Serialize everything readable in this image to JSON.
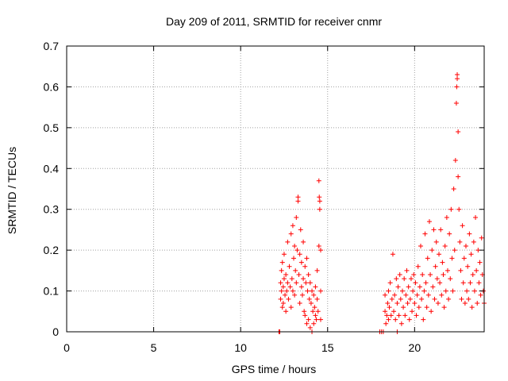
{
  "chart_data": {
    "type": "scatter",
    "title": "Day 209 of 2011, SRMTID for receiver cnmr",
    "xlabel": "GPS time / hours",
    "ylabel": "SRMTID / TECUs",
    "xlim": [
      0,
      24
    ],
    "ylim": [
      0,
      0.7
    ],
    "x_ticks": [
      "0",
      "5",
      "10",
      "15",
      "20"
    ],
    "y_ticks": [
      "0",
      "0.1",
      "0.2",
      "0.3",
      "0.4",
      "0.5",
      "0.6",
      "0.7"
    ],
    "grid": true,
    "marker": "+",
    "colors": {
      "series": "#ff0000",
      "grid": "#a0a0a0",
      "axis": "#000000"
    },
    "series": [
      {
        "points": [
          [
            12.2,
            0.0
          ],
          [
            12.25,
            0.0
          ],
          [
            12.3,
            0.12
          ],
          [
            12.3,
            0.08
          ],
          [
            12.35,
            0.15
          ],
          [
            12.35,
            0.1
          ],
          [
            12.4,
            0.06
          ],
          [
            12.4,
            0.17
          ],
          [
            12.45,
            0.11
          ],
          [
            12.45,
            0.07
          ],
          [
            12.5,
            0.13
          ],
          [
            12.5,
            0.19
          ],
          [
            12.55,
            0.09
          ],
          [
            12.6,
            0.05
          ],
          [
            12.6,
            0.14
          ],
          [
            12.65,
            0.1
          ],
          [
            12.7,
            0.22
          ],
          [
            12.7,
            0.12
          ],
          [
            12.75,
            0.08
          ],
          [
            12.8,
            0.16
          ],
          [
            12.85,
            0.11
          ],
          [
            12.9,
            0.24
          ],
          [
            12.9,
            0.06
          ],
          [
            12.95,
            0.13
          ],
          [
            13.0,
            0.26
          ],
          [
            13.0,
            0.1
          ],
          [
            13.05,
            0.18
          ],
          [
            13.1,
            0.21
          ],
          [
            13.1,
            0.09
          ],
          [
            13.15,
            0.15
          ],
          [
            13.2,
            0.28
          ],
          [
            13.2,
            0.12
          ],
          [
            13.25,
            0.2
          ],
          [
            13.3,
            0.33
          ],
          [
            13.3,
            0.32
          ],
          [
            13.35,
            0.14
          ],
          [
            13.4,
            0.19
          ],
          [
            13.4,
            0.07
          ],
          [
            13.45,
            0.25
          ],
          [
            13.5,
            0.11
          ],
          [
            13.5,
            0.17
          ],
          [
            13.55,
            0.09
          ],
          [
            13.6,
            0.22
          ],
          [
            13.6,
            0.13
          ],
          [
            13.65,
            0.05
          ],
          [
            13.7,
            0.16
          ],
          [
            13.7,
            0.04
          ],
          [
            13.75,
            0.12
          ],
          [
            13.8,
            0.18
          ],
          [
            13.8,
            0.02
          ],
          [
            13.85,
            0.1
          ],
          [
            13.9,
            0.14
          ],
          [
            13.9,
            0.03
          ],
          [
            13.95,
            0.08
          ],
          [
            14.0,
            0.12
          ],
          [
            14.0,
            0.01
          ],
          [
            14.05,
            0.07
          ],
          [
            14.1,
            0.1
          ],
          [
            14.1,
            0.0
          ],
          [
            14.15,
            0.05
          ],
          [
            14.2,
            0.09
          ],
          [
            14.2,
            0.02
          ],
          [
            14.25,
            0.06
          ],
          [
            14.3,
            0.04
          ],
          [
            14.3,
            0.11
          ],
          [
            14.35,
            0.03
          ],
          [
            14.4,
            0.08
          ],
          [
            14.4,
            0.15
          ],
          [
            14.45,
            0.05
          ],
          [
            14.5,
            0.21
          ],
          [
            14.5,
            0.37
          ],
          [
            14.52,
            0.33
          ],
          [
            14.55,
            0.3
          ],
          [
            14.55,
            0.32
          ],
          [
            14.6,
            0.2
          ],
          [
            14.6,
            0.03
          ],
          [
            14.6,
            0.1
          ],
          [
            18.0,
            0.0
          ],
          [
            18.1,
            0.0
          ],
          [
            18.2,
            0.0
          ],
          [
            18.3,
            0.05
          ],
          [
            18.3,
            0.09
          ],
          [
            18.35,
            0.02
          ],
          [
            18.4,
            0.04
          ],
          [
            18.45,
            0.07
          ],
          [
            18.5,
            0.03
          ],
          [
            18.5,
            0.1
          ],
          [
            18.55,
            0.06
          ],
          [
            18.6,
            0.12
          ],
          [
            18.65,
            0.04
          ],
          [
            18.7,
            0.08
          ],
          [
            18.75,
            0.19
          ],
          [
            18.8,
            0.05
          ],
          [
            18.85,
            0.09
          ],
          [
            18.9,
            0.03
          ],
          [
            18.95,
            0.13
          ],
          [
            19.0,
            0.07
          ],
          [
            19.0,
            0.0
          ],
          [
            19.05,
            0.11
          ],
          [
            19.1,
            0.04
          ],
          [
            19.15,
            0.14
          ],
          [
            19.2,
            0.08
          ],
          [
            19.25,
            0.02
          ],
          [
            19.3,
            0.1
          ],
          [
            19.35,
            0.06
          ],
          [
            19.4,
            0.13
          ],
          [
            19.45,
            0.04
          ],
          [
            19.5,
            0.09
          ],
          [
            19.55,
            0.15
          ],
          [
            19.6,
            0.07
          ],
          [
            19.65,
            0.11
          ],
          [
            19.7,
            0.03
          ],
          [
            19.75,
            0.08
          ],
          [
            19.8,
            0.13
          ],
          [
            19.85,
            0.05
          ],
          [
            19.9,
            0.1
          ],
          [
            19.95,
            0.14
          ],
          [
            20.0,
            0.07
          ],
          [
            20.05,
            0.12
          ],
          [
            20.1,
            0.04
          ],
          [
            20.15,
            0.09
          ],
          [
            20.2,
            0.16
          ],
          [
            20.25,
            0.06
          ],
          [
            20.3,
            0.11
          ],
          [
            20.35,
            0.21
          ],
          [
            20.4,
            0.08
          ],
          [
            20.45,
            0.14
          ],
          [
            20.5,
            0.03
          ],
          [
            20.55,
            0.1
          ],
          [
            20.6,
            0.24
          ],
          [
            20.65,
            0.12
          ],
          [
            20.7,
            0.06
          ],
          [
            20.75,
            0.18
          ],
          [
            20.8,
            0.09
          ],
          [
            20.85,
            0.27
          ],
          [
            20.9,
            0.14
          ],
          [
            20.95,
            0.05
          ],
          [
            21.0,
            0.2
          ],
          [
            21.05,
            0.11
          ],
          [
            21.1,
            0.25
          ],
          [
            21.15,
            0.08
          ],
          [
            21.2,
            0.16
          ],
          [
            21.25,
            0.22
          ],
          [
            21.3,
            0.13
          ],
          [
            21.35,
            0.07
          ],
          [
            21.4,
            0.19
          ],
          [
            21.45,
            0.12
          ],
          [
            21.5,
            0.25
          ],
          [
            21.55,
            0.09
          ],
          [
            21.6,
            0.17
          ],
          [
            21.65,
            0.14
          ],
          [
            21.7,
            0.06
          ],
          [
            21.75,
            0.21
          ],
          [
            21.8,
            0.1
          ],
          [
            21.85,
            0.28
          ],
          [
            21.9,
            0.15
          ],
          [
            21.95,
            0.08
          ],
          [
            22.0,
            0.24
          ],
          [
            22.05,
            0.13
          ],
          [
            22.1,
            0.3
          ],
          [
            22.15,
            0.18
          ],
          [
            22.2,
            0.1
          ],
          [
            22.25,
            0.35
          ],
          [
            22.3,
            0.2
          ],
          [
            22.35,
            0.42
          ],
          [
            22.4,
            0.56
          ],
          [
            22.42,
            0.6
          ],
          [
            22.45,
            0.63
          ],
          [
            22.45,
            0.62
          ],
          [
            22.5,
            0.49
          ],
          [
            22.5,
            0.38
          ],
          [
            22.55,
            0.3
          ],
          [
            22.6,
            0.22
          ],
          [
            22.65,
            0.15
          ],
          [
            22.7,
            0.08
          ],
          [
            22.75,
            0.26
          ],
          [
            22.8,
            0.12
          ],
          [
            22.85,
            0.18
          ],
          [
            22.9,
            0.07
          ],
          [
            22.95,
            0.21
          ],
          [
            23.0,
            0.1
          ],
          [
            23.05,
            0.16
          ],
          [
            23.1,
            0.08
          ],
          [
            23.15,
            0.24
          ],
          [
            23.2,
            0.12
          ],
          [
            23.25,
            0.19
          ],
          [
            23.3,
            0.06
          ],
          [
            23.35,
            0.14
          ],
          [
            23.4,
            0.22
          ],
          [
            23.45,
            0.1
          ],
          [
            23.5,
            0.28
          ],
          [
            23.55,
            0.15
          ],
          [
            23.6,
            0.07
          ],
          [
            23.65,
            0.2
          ],
          [
            23.7,
            0.12
          ],
          [
            23.75,
            0.17
          ],
          [
            23.8,
            0.09
          ],
          [
            23.85,
            0.23
          ],
          [
            23.9,
            0.14
          ],
          [
            23.95,
            0.1
          ],
          [
            24.0,
            0.07
          ]
        ]
      }
    ]
  }
}
